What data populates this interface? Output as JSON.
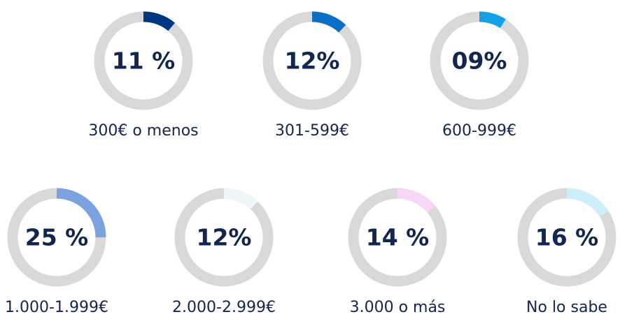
{
  "chart_data": {
    "type": "gauge",
    "categories": [
      "300€ o menos",
      "301-599€",
      "600-999€",
      "1.000-1.999€",
      "2.000-2.999€",
      "3.000 o más",
      "No lo sabe"
    ],
    "values": [
      11,
      12,
      9,
      25,
      12,
      14,
      16
    ],
    "value_labels": [
      "11 %",
      "12%",
      "09%",
      "25 %",
      "12%",
      "14 %",
      "16 %"
    ],
    "colors": [
      "#003781",
      "#0b6fc7",
      "#13a0e6",
      "#7ca3e0",
      "#eef6f9",
      "#f7d6f7",
      "#cdeefb"
    ],
    "ylim": [
      0,
      100
    ]
  }
}
